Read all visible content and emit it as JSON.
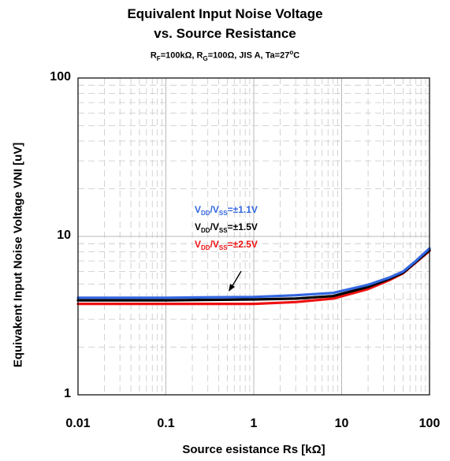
{
  "chart_data": {
    "type": "line",
    "title": "Equivalent Input Noise Voltage",
    "subtitle": "vs. Source Resistance",
    "conditions": {
      "r_f": "=100kΩ, R",
      "r_g": "=100Ω, JIS A, Ta=27",
      "deg": "o",
      "unit": "C"
    },
    "xlabel": "Source esistance Rs [kΩ]",
    "ylabel": "Equivakent Input Noise Voltage VNI [uV]",
    "x_scale": "log",
    "y_scale": "log",
    "xlim": [
      0.01,
      100
    ],
    "ylim": [
      1,
      100
    ],
    "x_ticks": [
      "0.01",
      "0.1",
      "1",
      "10",
      "100"
    ],
    "y_ticks": [
      "1",
      "10",
      "100"
    ],
    "grid": true,
    "colors": {
      "s1": "#3366e0",
      "s2": "#000000",
      "s3": "#ee1111",
      "grid_major": "#b8b8b8",
      "grid_minor": "#c8c8c8"
    },
    "legend": [
      {
        "label": "±1.1V",
        "color": "#3366e0"
      },
      {
        "label": "±1.5V",
        "color": "#000000"
      },
      {
        "label": "±2.5V",
        "color": "#ee1111"
      }
    ],
    "series": [
      {
        "name": "VDD/VSS=±1.1V",
        "x": [
          0.01,
          0.1,
          1,
          3,
          8,
          20,
          35,
          50,
          70,
          100
        ],
        "y": [
          4.1,
          4.1,
          4.15,
          4.25,
          4.4,
          4.95,
          5.5,
          6.0,
          7.0,
          8.4
        ]
      },
      {
        "name": "VDD/VSS=±1.5V",
        "x": [
          0.01,
          0.1,
          1,
          3,
          8,
          20,
          35,
          50,
          70,
          100
        ],
        "y": [
          3.95,
          3.95,
          4.0,
          4.05,
          4.2,
          4.8,
          5.4,
          5.9,
          6.9,
          8.2
        ]
      },
      {
        "name": "VDD/VSS=±2.5V",
        "x": [
          0.01,
          0.1,
          1,
          3,
          8,
          20,
          35,
          50,
          70,
          100
        ],
        "y": [
          3.75,
          3.75,
          3.75,
          3.85,
          4.05,
          4.65,
          5.3,
          5.85,
          6.85,
          8.1
        ]
      }
    ]
  }
}
